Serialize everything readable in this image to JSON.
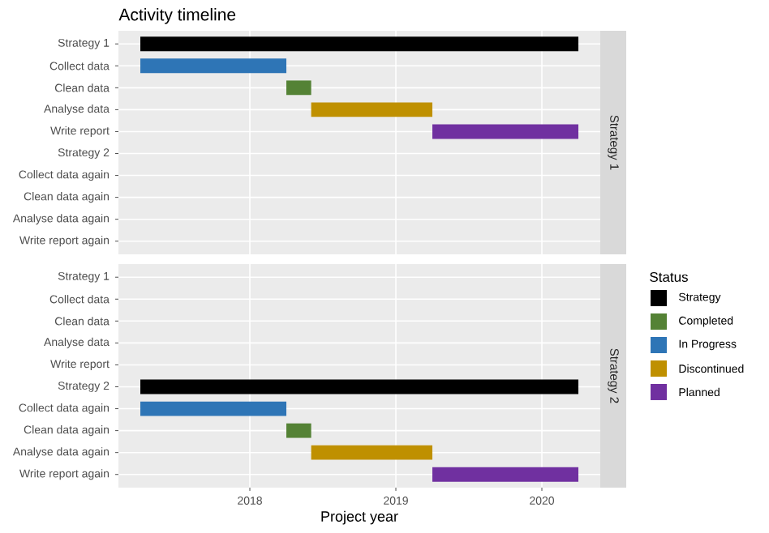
{
  "chart_data": [
    {
      "type": "bar",
      "orientation": "horizontal",
      "title": "Activity timeline",
      "y2label": "Strategy 1",
      "categories": [
        "Strategy 1",
        "Collect data",
        "Clean data",
        "Analyse data",
        "Write report",
        "Strategy 2",
        "Collect data again",
        "Clean data again",
        "Analyse data again",
        "Write report again"
      ],
      "series": [
        {
          "name": "Strategy",
          "color": "#000000",
          "values": [
            3.0,
            null,
            null,
            null,
            null,
            null,
            null,
            null,
            null,
            null
          ],
          "base": [
            2017.25,
            null,
            null,
            null,
            null,
            null,
            null,
            null,
            null,
            null
          ]
        },
        {
          "name": "Completed",
          "color": "#548235",
          "values": [
            null,
            null,
            0.17,
            null,
            null,
            null,
            null,
            null,
            null,
            null
          ],
          "base": [
            null,
            null,
            2018.25,
            null,
            null,
            null,
            null,
            null,
            null,
            null
          ]
        },
        {
          "name": "In Progress",
          "color": "#2e75b6",
          "values": [
            null,
            1.0,
            null,
            null,
            null,
            null,
            null,
            null,
            null,
            null
          ],
          "base": [
            null,
            2017.25,
            null,
            null,
            null,
            null,
            null,
            null,
            null,
            null
          ]
        },
        {
          "name": "Discontinued",
          "color": "#bf9000",
          "values": [
            null,
            null,
            null,
            0.83,
            null,
            null,
            null,
            null,
            null,
            null
          ],
          "base": [
            null,
            null,
            null,
            2018.42,
            null,
            null,
            null,
            null,
            null,
            null
          ]
        },
        {
          "name": "Planned",
          "color": "#7030a0",
          "values": [
            null,
            null,
            null,
            null,
            1.0,
            null,
            null,
            null,
            null,
            null
          ],
          "base": [
            null,
            null,
            null,
            null,
            2019.25,
            null,
            null,
            null,
            null,
            null
          ]
        }
      ],
      "xlim": [
        2017.1,
        2020.4
      ],
      "xticks": [
        2018,
        2019,
        2020
      ],
      "tick_labels": "y",
      "grid": true,
      "legend": "right",
      "legend_title": "Status"
    },
    {
      "type": "bar",
      "orientation": "horizontal",
      "y2label": "Strategy 2",
      "xlabel": "Project year",
      "categories": [
        "Strategy 1",
        "Collect data",
        "Clean data",
        "Analyse data",
        "Write report",
        "Strategy 2",
        "Collect data again",
        "Clean data again",
        "Analyse data again",
        "Write report again"
      ],
      "series": [
        {
          "color": "#000000",
          "values": [
            null,
            null,
            null,
            null,
            null,
            3.0,
            null,
            null,
            null,
            null
          ],
          "base": [
            null,
            null,
            null,
            null,
            null,
            2017.25,
            null,
            null,
            null,
            null
          ]
        },
        {
          "color": "#548235",
          "values": [
            null,
            null,
            null,
            null,
            null,
            null,
            null,
            0.17,
            null,
            null
          ],
          "base": [
            null,
            null,
            null,
            null,
            null,
            null,
            null,
            2018.25,
            null,
            null
          ]
        },
        {
          "color": "#2e75b6",
          "values": [
            null,
            null,
            null,
            null,
            null,
            null,
            1.0,
            null,
            null,
            null
          ],
          "base": [
            null,
            null,
            null,
            null,
            null,
            null,
            2017.25,
            null,
            null,
            null
          ]
        },
        {
          "color": "#bf9000",
          "values": [
            null,
            null,
            null,
            null,
            null,
            null,
            null,
            null,
            0.83,
            null
          ],
          "base": [
            null,
            null,
            null,
            null,
            null,
            null,
            null,
            null,
            2018.42,
            null
          ]
        },
        {
          "color": "#7030a0",
          "values": [
            null,
            null,
            null,
            null,
            null,
            null,
            null,
            null,
            null,
            1.0
          ],
          "base": [
            null,
            null,
            null,
            null,
            null,
            null,
            null,
            null,
            null,
            2019.25
          ]
        }
      ],
      "xlim": [
        2017.1,
        2020.4
      ],
      "xticks": [
        2018,
        2019,
        2020
      ],
      "grid": true
    }
  ]
}
